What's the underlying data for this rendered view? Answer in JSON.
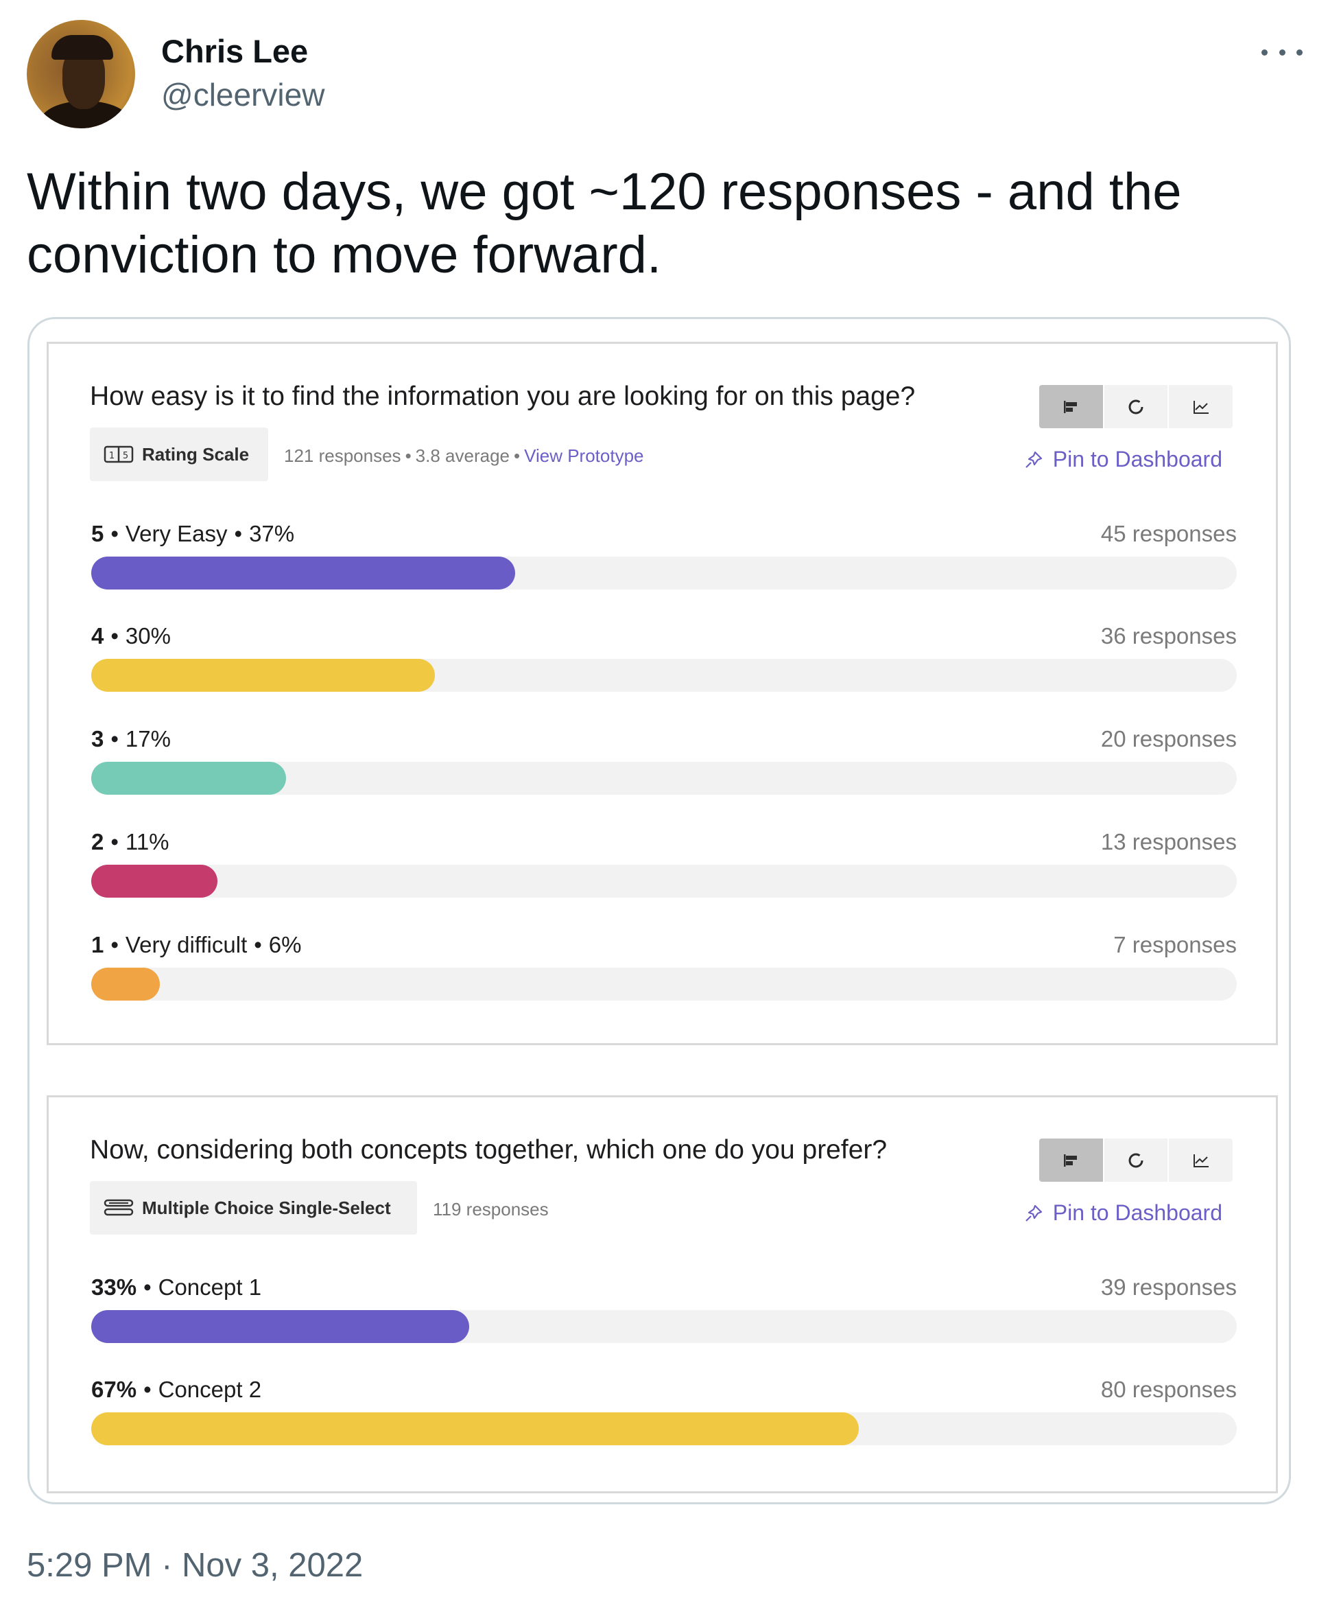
{
  "author": {
    "name": "Chris Lee",
    "handle": "@cleerview"
  },
  "tweet": {
    "text": "Within two days, we got ~120 responses - and the conviction to move forward.",
    "timestamp": "5:29 PM · Nov 3, 2022"
  },
  "icons": {
    "more": "more-horizontal-icon",
    "rating": "rating-scale-icon",
    "multiple_choice": "multiple-choice-icon",
    "bar_view": "bar-chart-icon",
    "pie_view": "pie-chart-icon",
    "line_view": "line-chart-icon",
    "pin": "pin-icon"
  },
  "colors": {
    "purple": "#6a5cc6",
    "yellow": "#f1c842",
    "teal": "#76cbb7",
    "magenta": "#c43b6c",
    "orange": "#f0a443",
    "link": "#6b5fc7"
  },
  "panels": [
    {
      "question": "How easy is it to find the information you are looking for on this page?",
      "type": "Rating Scale",
      "meta": {
        "responses": "121 responses",
        "average": "3.8 average",
        "link": "View Prototype"
      },
      "pin_label": "Pin to Dashboard",
      "rows": [
        {
          "value": "5",
          "label": "Very Easy",
          "percent": "37%",
          "count": "45 responses",
          "fraction": 0.37,
          "color": "#6a5cc6"
        },
        {
          "value": "4",
          "label": "",
          "percent": "30%",
          "count": "36 responses",
          "fraction": 0.3,
          "color": "#f1c842"
        },
        {
          "value": "3",
          "label": "",
          "percent": "17%",
          "count": "20 responses",
          "fraction": 0.17,
          "color": "#76cbb7"
        },
        {
          "value": "2",
          "label": "",
          "percent": "11%",
          "count": "13 responses",
          "fraction": 0.11,
          "color": "#c43b6c"
        },
        {
          "value": "1",
          "label": "Very difficult",
          "percent": "6%",
          "count": "7 responses",
          "fraction": 0.06,
          "color": "#f0a443"
        }
      ]
    },
    {
      "question": "Now, considering both concepts together, which one do you prefer?",
      "type": "Multiple Choice Single-Select",
      "meta": {
        "responses": "119 responses"
      },
      "pin_label": "Pin to Dashboard",
      "rows": [
        {
          "percent": "33%",
          "label": "Concept 1",
          "count": "39 responses",
          "fraction": 0.33,
          "color": "#6a5cc6"
        },
        {
          "percent": "67%",
          "label": "Concept 2",
          "count": "80 responses",
          "fraction": 0.67,
          "color": "#f1c842"
        }
      ]
    }
  ]
}
